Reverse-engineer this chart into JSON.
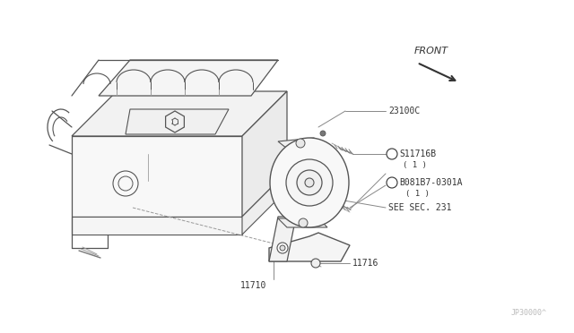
{
  "bg_color": "#ffffff",
  "lc": "#555555",
  "tc": "#333333",
  "alc": "#888888",
  "fig_width": 6.4,
  "fig_height": 3.72,
  "dpi": 100,
  "labels": {
    "part_23100C": "23100C",
    "part_11716B": "S11716B",
    "part_11716B_qty": "( 1 )",
    "part_081B7": "B081B7-0301A",
    "part_081B7_qty": "( 1 )",
    "see_sec": "SEE SEC. 231",
    "part_11716": "11716",
    "part_11710": "11710",
    "front_label": "FRONT",
    "watermark": "JP30000^"
  }
}
